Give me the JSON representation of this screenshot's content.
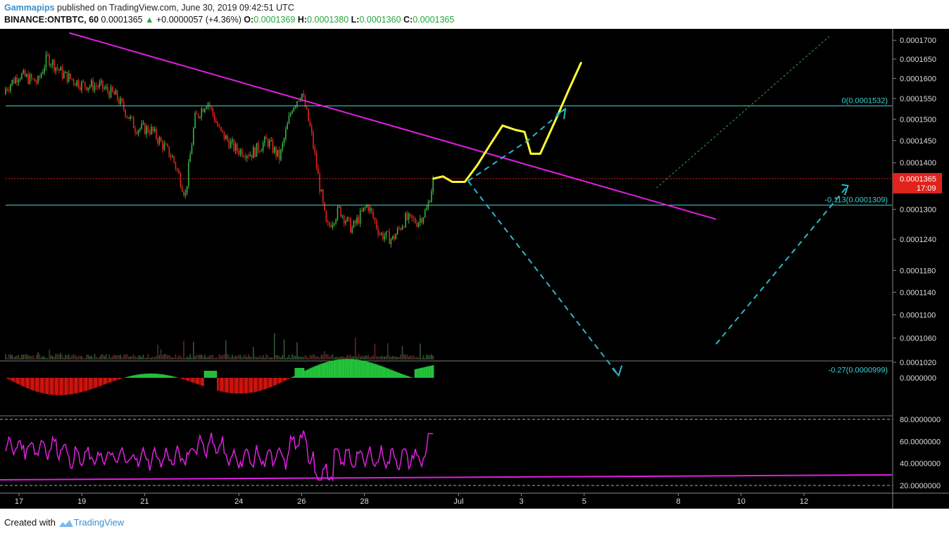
{
  "header": {
    "author": "Gammapips",
    "published_text": "published on TradingView.com, June 30, 2019 09:42:51 UTC",
    "symbol": "BINANCE:ONTBTC, 60",
    "last_price": "0.0001365",
    "change": "+0.0000057 (+4.36%)",
    "o_label": "O:",
    "o_value": "0.0001369",
    "h_label": "H:",
    "h_value": "0.0001380",
    "l_label": "L:",
    "l_value": "0.0001360",
    "c_label": "C:",
    "c_value": "0.0001365"
  },
  "footer": {
    "created_with": "Created with",
    "brand": "TradingView"
  },
  "chart_data": {
    "type": "candlestick",
    "title": "BINANCE:ONTBTC, 60",
    "x_ticks": [
      "17",
      "19",
      "21",
      "24",
      "26",
      "28",
      "Jul",
      "3",
      "5",
      "8",
      "10",
      "12"
    ],
    "price_axis_ticks": [
      "0.0001700",
      "0.0001650",
      "0.0001600",
      "0.0001550",
      "0.0001500",
      "0.0001450",
      "0.0001400",
      "0.0001300",
      "0.0001240",
      "0.0001180",
      "0.0001140",
      "0.0001100",
      "0.0001060",
      "0.0001020"
    ],
    "price_axis_log": true,
    "current_price_label": "0.0001365",
    "countdown_label": "17:09",
    "fib_levels": [
      {
        "label": "0(0.0001532)",
        "price": 0.0001532
      },
      {
        "label": "-0.113(0.0001309)",
        "price": 0.0001309
      },
      {
        "label": "-0.27(0.0000999)",
        "price": 9.99e-05
      }
    ],
    "macd_axis_ticks": [
      "0.0000000"
    ],
    "rsi_axis_ticks": [
      "80.0000000",
      "60.0000000",
      "40.0000000",
      "20.0000000"
    ],
    "rsi_bands": [
      80,
      20
    ],
    "price_path_anchors": [
      {
        "day": 16.4,
        "price": 0.000156
      },
      {
        "day": 17.0,
        "price": 0.000161
      },
      {
        "day": 17.6,
        "price": 0.000159
      },
      {
        "day": 17.9,
        "price": 0.0001655
      },
      {
        "day": 18.4,
        "price": 0.000161
      },
      {
        "day": 19.0,
        "price": 0.0001585
      },
      {
        "day": 19.6,
        "price": 0.000158
      },
      {
        "day": 20.1,
        "price": 0.0001555
      },
      {
        "day": 20.7,
        "price": 0.000148
      },
      {
        "day": 21.2,
        "price": 0.0001475
      },
      {
        "day": 21.9,
        "price": 0.000141
      },
      {
        "day": 22.3,
        "price": 0.000133
      },
      {
        "day": 22.6,
        "price": 0.00015
      },
      {
        "day": 23.0,
        "price": 0.0001545
      },
      {
        "day": 23.4,
        "price": 0.000147
      },
      {
        "day": 23.9,
        "price": 0.000143
      },
      {
        "day": 24.4,
        "price": 0.000142
      },
      {
        "day": 24.9,
        "price": 0.000145
      },
      {
        "day": 25.3,
        "price": 0.000141
      },
      {
        "day": 25.7,
        "price": 0.000153
      },
      {
        "day": 26.0,
        "price": 0.0001565
      },
      {
        "day": 26.3,
        "price": 0.000147
      },
      {
        "day": 26.5,
        "price": 0.000138
      },
      {
        "day": 26.8,
        "price": 0.000126
      },
      {
        "day": 27.2,
        "price": 0.00013
      },
      {
        "day": 27.6,
        "price": 0.000126
      },
      {
        "day": 28.1,
        "price": 0.000131
      },
      {
        "day": 28.5,
        "price": 0.000125
      },
      {
        "day": 28.9,
        "price": 0.000124
      },
      {
        "day": 29.3,
        "price": 0.000128
      },
      {
        "day": 29.7,
        "price": 0.0001275
      },
      {
        "day": 30.0,
        "price": 0.00013
      },
      {
        "day": 30.2,
        "price": 0.0001365
      }
    ]
  },
  "colors": {
    "background": "#000000",
    "up_candle": "#3cb043",
    "down_candle": "#e0231c",
    "trendline": "#e020e0",
    "fib": "#3fd0d0",
    "projection": "#ffff33",
    "current_price": "#e0231c",
    "rsi": "#e020e0",
    "dashed_projection": "#2bb8c8"
  }
}
